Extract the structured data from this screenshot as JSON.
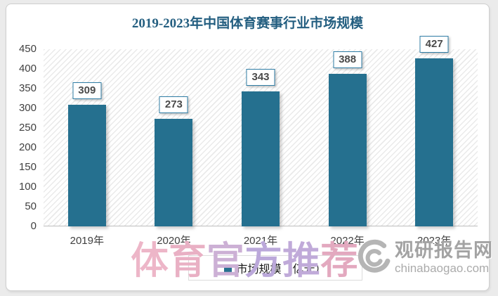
{
  "title": "2019-2023年中国体育赛事行业市场规模",
  "title_color": "#235e80",
  "chart_data": {
    "type": "bar",
    "title": "2019-2023年中国体育赛事行业市场规模",
    "categories": [
      "2019年",
      "2020年",
      "2021年",
      "2022年",
      "2023年"
    ],
    "values": [
      309,
      273,
      343,
      388,
      427
    ],
    "series_name": "市场规模（亿元）",
    "xlabel": "",
    "ylabel": "",
    "ylim": [
      0,
      450
    ],
    "ytick_step": 50,
    "grid": false,
    "legend_position": "bottom",
    "bar_color": "#25708f",
    "plot_hatch": "diagonal-light-gray"
  },
  "legend": {
    "label": "市场规模（亿元）",
    "marker_color": "#25708f"
  },
  "watermark": {
    "text": "体育官方推荐",
    "char_colors": [
      "#edb6c8",
      "#e9b0c4",
      "#ccb0d5",
      "#bba8da",
      "#c0aad9",
      "#e3a9bf"
    ]
  },
  "logo": {
    "name": "观研报告网",
    "domain": "chinabaogao.com",
    "color": "#a3a3a3"
  }
}
